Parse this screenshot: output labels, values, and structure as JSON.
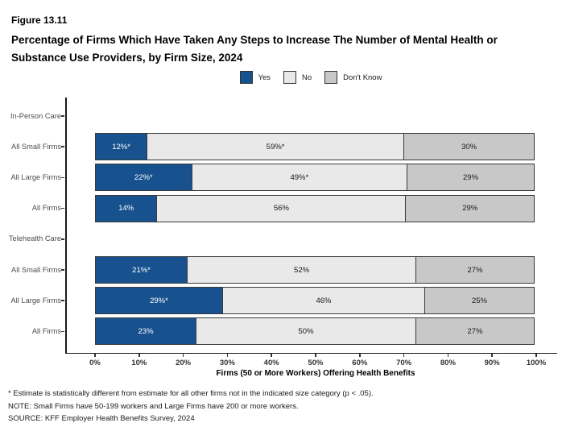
{
  "header": {
    "figure_label": "Figure 13.11",
    "title_lines": [
      "Percentage of Firms Which Have Taken Any Steps to Increase The Number of Mental Health or",
      "Substance Use Providers, by Firm Size, 2024"
    ]
  },
  "colors": {
    "yes": "#17528F",
    "no": "#E9E9E9",
    "dont_know": "#C8C8C8",
    "segment_border": "#3A3A3A",
    "yes_text": "#FFFFFF",
    "gray_text": "#1A1A1A"
  },
  "chart_data": {
    "type": "bar",
    "orientation": "horizontal-stacked",
    "title": "Percentage of Firms Which Have Taken Any Steps to Increase The Number of Mental Health or Substance Use Providers, by Firm Size, 2024",
    "xlabel": "Firms (50 or More Workers) Offering Health Benefits",
    "ylabel": "",
    "xlim": [
      0,
      100
    ],
    "grid": false,
    "legend_position": "top-center",
    "series_names": [
      "Yes",
      "No",
      "Don't Know"
    ],
    "x_tick_labels": [
      "0%",
      "10%",
      "20%",
      "30%",
      "40%",
      "50%",
      "60%",
      "70%",
      "80%",
      "90%",
      "100%"
    ],
    "rows": [
      {
        "label": "In-Person Care",
        "header": true
      },
      {
        "label": "All Small Firms",
        "values": [
          12,
          59,
          30
        ],
        "value_labels": [
          "12%*",
          "59%*",
          "30%"
        ]
      },
      {
        "label": "All Large Firms",
        "values": [
          22,
          49,
          29
        ],
        "value_labels": [
          "22%*",
          "49%*",
          "29%"
        ]
      },
      {
        "label": "All Firms",
        "values": [
          14,
          56,
          29
        ],
        "value_labels": [
          "14%",
          "56%",
          "29%"
        ]
      },
      {
        "label": "Telehealth Care",
        "header": true
      },
      {
        "label": "All Small Firms",
        "values": [
          21,
          52,
          27
        ],
        "value_labels": [
          "21%*",
          "52%",
          "27%"
        ]
      },
      {
        "label": "All Large Firms",
        "values": [
          29,
          46,
          25
        ],
        "value_labels": [
          "29%*",
          "46%",
          "25%"
        ]
      },
      {
        "label": "All Firms",
        "values": [
          23,
          50,
          27
        ],
        "value_labels": [
          "23%",
          "50%",
          "27%"
        ]
      }
    ]
  },
  "legend": {
    "items": [
      {
        "label": "Yes",
        "color_key": "yes"
      },
      {
        "label": "No",
        "color_key": "no"
      },
      {
        "label": "Don't Know",
        "color_key": "dont_know"
      }
    ]
  },
  "footnotes": [
    "* Estimate is statistically different from estimate for all other firms not in the indicated size category (p < .05).",
    "NOTE: Small Firms have 50-199 workers and Large Firms have 200 or more workers.",
    "SOURCE: KFF Employer Health Benefits Survey, 2024"
  ]
}
